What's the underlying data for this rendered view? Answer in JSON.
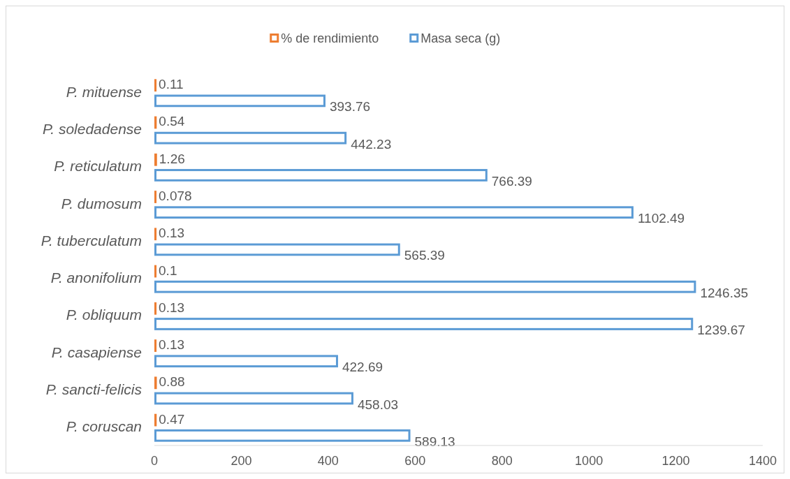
{
  "chart_data": {
    "type": "bar",
    "orientation": "horizontal",
    "categories": [
      "P. mituense",
      "P. soledadense",
      "P. reticulatum",
      "P. dumosum",
      "P. tuberculatum",
      "P. anonifolium",
      "P. obliquum",
      "P. casapiense",
      "P. sancti-felicis",
      "P. coruscan"
    ],
    "series": [
      {
        "name": "% de rendimiento",
        "color": "#ed7d31",
        "values": [
          0.11,
          0.54,
          1.26,
          0.078,
          0.13,
          0.1,
          0.13,
          0.13,
          0.88,
          0.47
        ]
      },
      {
        "name": "Masa seca (g)",
        "color": "#5b9bd5",
        "values": [
          393.76,
          442.23,
          766.39,
          1102.49,
          565.39,
          1246.35,
          1239.67,
          422.69,
          458.03,
          589.13
        ]
      }
    ],
    "xlim": [
      0,
      1400
    ],
    "xticks": [
      0,
      200,
      400,
      600,
      800,
      1000,
      1200,
      1400
    ],
    "data_labels": true,
    "legend": "top",
    "grid": false
  }
}
